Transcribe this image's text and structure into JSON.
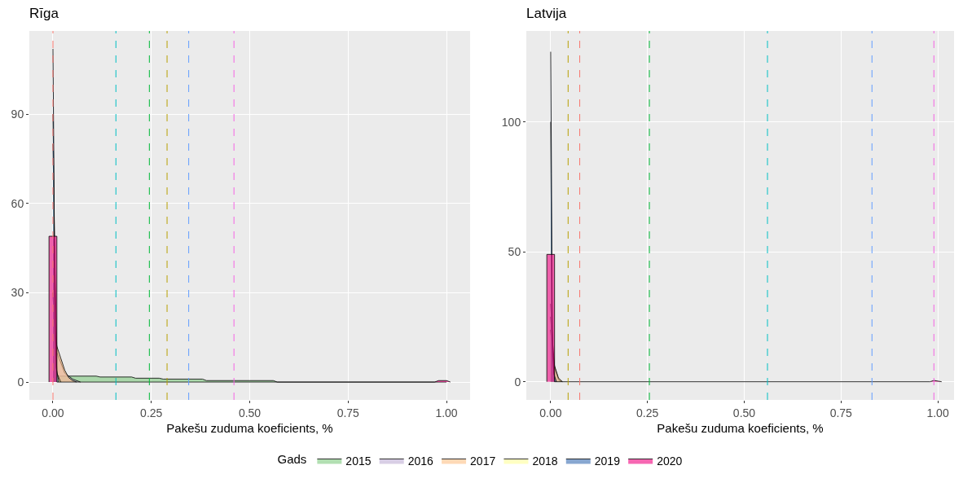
{
  "chart_data": [
    {
      "type": "area",
      "title": "Rīga",
      "xlabel": "Pakešu zuduma koeficients, %",
      "legend_title": "Gads",
      "legend": "bottom",
      "grid": true,
      "marker": "none",
      "xlim": [
        -0.06,
        1.06
      ],
      "xticks": [
        {
          "value": 0,
          "label": "0.00"
        },
        {
          "value": 0.25,
          "label": "0.25"
        },
        {
          "value": 0.5,
          "label": "0.50"
        },
        {
          "value": 0.75,
          "label": "0.75"
        },
        {
          "value": 1,
          "label": "1.00"
        }
      ],
      "ylim": [
        -6,
        118
      ],
      "yticks": [
        0,
        30,
        60,
        90
      ],
      "series": [
        {
          "name": "2015",
          "color": "#7fc97f",
          "x": [
            0,
            0.01,
            0.02,
            0.11,
            0.12,
            0.2,
            0.21,
            0.27,
            0.28,
            0.38,
            0.39,
            0.56,
            0.57,
            1.0
          ],
          "values": [
            0,
            2,
            2,
            2,
            1.7,
            1.7,
            1.3,
            1.3,
            1.0,
            1.0,
            0.5,
            0.5,
            0,
            0
          ]
        },
        {
          "name": "2016",
          "color": "#beaed4",
          "x": [
            0,
            0.005,
            0.01,
            0.03,
            0.05,
            0.07
          ],
          "values": [
            80,
            40,
            10,
            3,
            1,
            0
          ]
        },
        {
          "name": "2017",
          "color": "#fdc086",
          "x": [
            0,
            0.005,
            0.01,
            0.02,
            0.03,
            0.04,
            0.05,
            0.06
          ],
          "values": [
            30,
            15,
            12,
            8,
            4,
            1.5,
            0.5,
            0
          ]
        },
        {
          "name": "2018",
          "color": "#ffff99",
          "x": [
            0,
            0.003,
            0.006,
            0.01,
            0.02
          ],
          "values": [
            90,
            60,
            20,
            3,
            0
          ]
        },
        {
          "name": "2019",
          "color": "#386cb0",
          "x": [
            0,
            0.002,
            0.004,
            0.008,
            0.015
          ],
          "values": [
            112,
            80,
            30,
            5,
            0
          ]
        },
        {
          "name": "2020",
          "color": "#f0027f",
          "x": [
            -0.01,
            -0.01,
            0.01,
            0.01,
            0.97,
            0.98,
            1.0,
            1.01
          ],
          "values": [
            0,
            49,
            49,
            0,
            0,
            0.5,
            0.5,
            0
          ]
        }
      ],
      "ref_lines": [
        {
          "axis": "x",
          "value": 0.0,
          "color": "#f8766d",
          "line_style": "dashed"
        },
        {
          "axis": "x",
          "value": 0.29,
          "color": "#b79f00",
          "line_style": "dashed"
        },
        {
          "axis": "x",
          "value": 0.245,
          "color": "#00ba38",
          "line_style": "dashed"
        },
        {
          "axis": "x",
          "value": 0.16,
          "color": "#00bfc4",
          "line_style": "dashed"
        },
        {
          "axis": "x",
          "value": 0.345,
          "color": "#619cff",
          "line_style": "dashed"
        },
        {
          "axis": "x",
          "value": 0.46,
          "color": "#f564e3",
          "line_style": "dashed"
        }
      ]
    },
    {
      "type": "area",
      "title": "Latvija",
      "xlabel": "Pakešu zuduma koeficients, %",
      "grid": true,
      "marker": "none",
      "xlim": [
        -0.063,
        1.042
      ],
      "xticks": [
        {
          "value": 0,
          "label": "0.00"
        },
        {
          "value": 0.25,
          "label": "0.25"
        },
        {
          "value": 0.5,
          "label": "0.50"
        },
        {
          "value": 0.75,
          "label": "0.75"
        },
        {
          "value": 1,
          "label": "1.00"
        }
      ],
      "ylim": [
        -7,
        135
      ],
      "yticks": [
        0,
        50,
        100
      ],
      "series": [
        {
          "color": "#7fc97f",
          "x": [
            0,
            0.005,
            0.01,
            0.02,
            0.03
          ],
          "values": [
            20,
            10,
            5,
            1,
            0
          ]
        },
        {
          "color": "#beaed4",
          "x": [
            0,
            0.005,
            0.01,
            0.02,
            0.025
          ],
          "values": [
            30,
            15,
            6,
            1,
            0
          ]
        },
        {
          "color": "#fdc086",
          "x": [
            0,
            0.005,
            0.01,
            0.02,
            0.03
          ],
          "values": [
            25,
            12,
            6,
            1.5,
            0
          ]
        },
        {
          "color": "#ffff99",
          "x": [
            0,
            0.002,
            0.005,
            0.01
          ],
          "values": [
            100,
            50,
            10,
            0
          ]
        },
        {
          "color": "#386cb0",
          "x": [
            0,
            0.002,
            0.004,
            0.008,
            0.015
          ],
          "values": [
            127,
            80,
            20,
            3,
            0
          ]
        },
        {
          "color": "#f0027f",
          "x": [
            -0.01,
            -0.01,
            0.01,
            0.01,
            0.98,
            0.99,
            1.01
          ],
          "values": [
            0,
            49,
            49,
            0,
            0,
            0.5,
            0
          ]
        }
      ],
      "ref_lines": [
        {
          "axis": "x",
          "value": 0.075,
          "color": "#f8766d",
          "line_style": "dashed"
        },
        {
          "axis": "x",
          "value": 0.045,
          "color": "#b79f00",
          "line_style": "dashed"
        },
        {
          "axis": "x",
          "value": 0.255,
          "color": "#00ba38",
          "line_style": "dashed"
        },
        {
          "axis": "x",
          "value": 0.56,
          "color": "#00bfc4",
          "line_style": "dashed"
        },
        {
          "axis": "x",
          "value": 0.83,
          "color": "#619cff",
          "line_style": "dashed"
        },
        {
          "axis": "x",
          "value": 0.99,
          "color": "#f564e3",
          "line_style": "dashed"
        }
      ]
    }
  ]
}
